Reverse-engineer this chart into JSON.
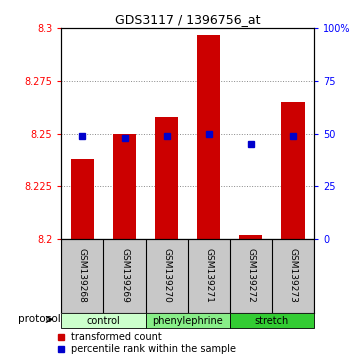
{
  "title": "GDS3117 / 1396756_at",
  "samples": [
    "GSM139268",
    "GSM139269",
    "GSM139270",
    "GSM139271",
    "GSM139272",
    "GSM139273"
  ],
  "red_values": [
    8.238,
    8.25,
    8.258,
    8.297,
    8.202,
    8.265
  ],
  "blue_values": [
    49,
    48,
    49,
    50,
    45,
    49
  ],
  "ylim_left": [
    8.2,
    8.3
  ],
  "ylim_right": [
    0,
    100
  ],
  "yticks_left": [
    8.2,
    8.225,
    8.25,
    8.275,
    8.3
  ],
  "yticks_right": [
    0,
    25,
    50,
    75,
    100
  ],
  "ytick_labels_left": [
    "8.2",
    "8.225",
    "8.25",
    "8.275",
    "8.3"
  ],
  "ytick_labels_right": [
    "0",
    "25",
    "50",
    "75",
    "100%"
  ],
  "groups": [
    {
      "label": "control",
      "color": "#ccffcc"
    },
    {
      "label": "phenylephrine",
      "color": "#88ee88"
    },
    {
      "label": "stretch",
      "color": "#33cc33"
    }
  ],
  "protocol_label": "protocol",
  "bar_color": "#cc0000",
  "dot_color": "#0000cc",
  "bar_bottom": 8.2,
  "dot_size": 5,
  "bar_width": 0.55,
  "grid_color": "#888888",
  "bg_plot": "#ffffff",
  "bg_sample_row": "#c8c8c8",
  "legend_red": "transformed count",
  "legend_blue": "percentile rank within the sample"
}
